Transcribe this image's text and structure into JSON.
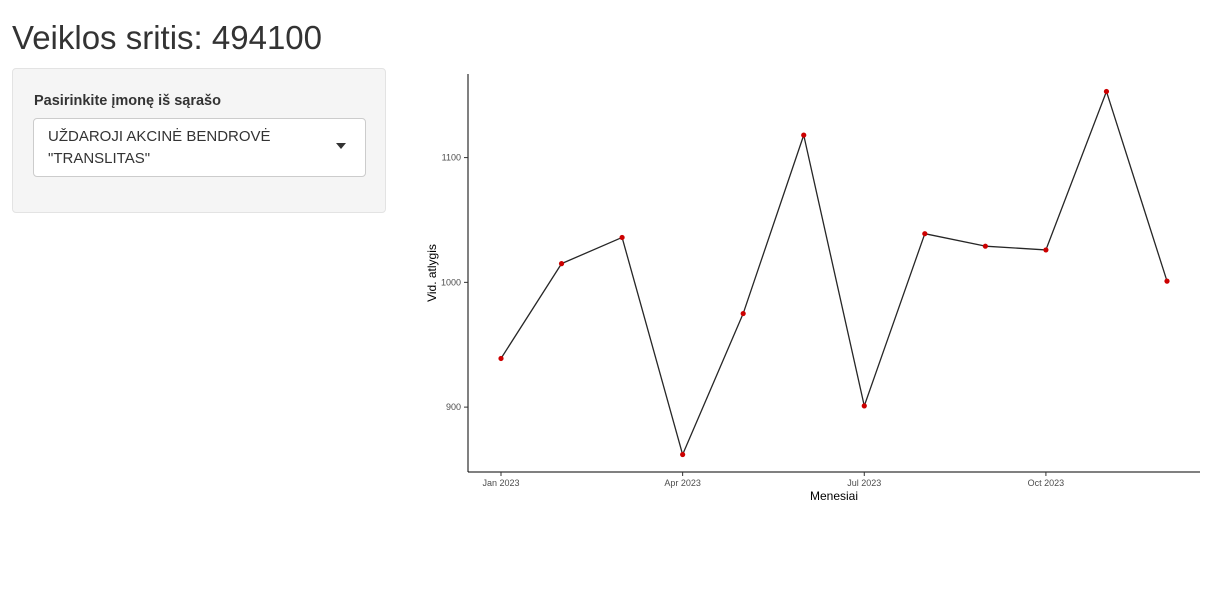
{
  "page": {
    "title": "Veiklos sritis: 494100"
  },
  "sidebar": {
    "select_label": "Pasirinkite įmonę iš sąrašo",
    "select_value": "UŽDAROJI AKCINĖ BENDROVĖ\n\"TRANSLITAS\"",
    "caret_icon": "chevron-down-icon"
  },
  "chart_data": {
    "type": "line",
    "title": "",
    "xlabel": "Menesiai",
    "ylabel": "Vid. atlygis",
    "x": [
      "2023-01",
      "2023-02",
      "2023-03",
      "2023-04",
      "2023-05",
      "2023-06",
      "2023-07",
      "2023-08",
      "2023-09",
      "2023-10",
      "2023-11",
      "2023-12"
    ],
    "values": [
      939,
      1015,
      1036,
      862,
      975,
      1118,
      901,
      1039,
      1029,
      1026,
      1153,
      1001
    ],
    "x_ticks": [
      {
        "x": "2023-01",
        "label": "Jan 2023"
      },
      {
        "x": "2023-04",
        "label": "Apr 2023"
      },
      {
        "x": "2023-07",
        "label": "Jul 2023"
      },
      {
        "x": "2023-10",
        "label": "Oct 2023"
      }
    ],
    "y_ticks": [
      900,
      1000,
      1100
    ],
    "ylim": [
      848,
      1167
    ],
    "grid": false,
    "line_color": "#000000",
    "point_color": "#cc0000"
  }
}
